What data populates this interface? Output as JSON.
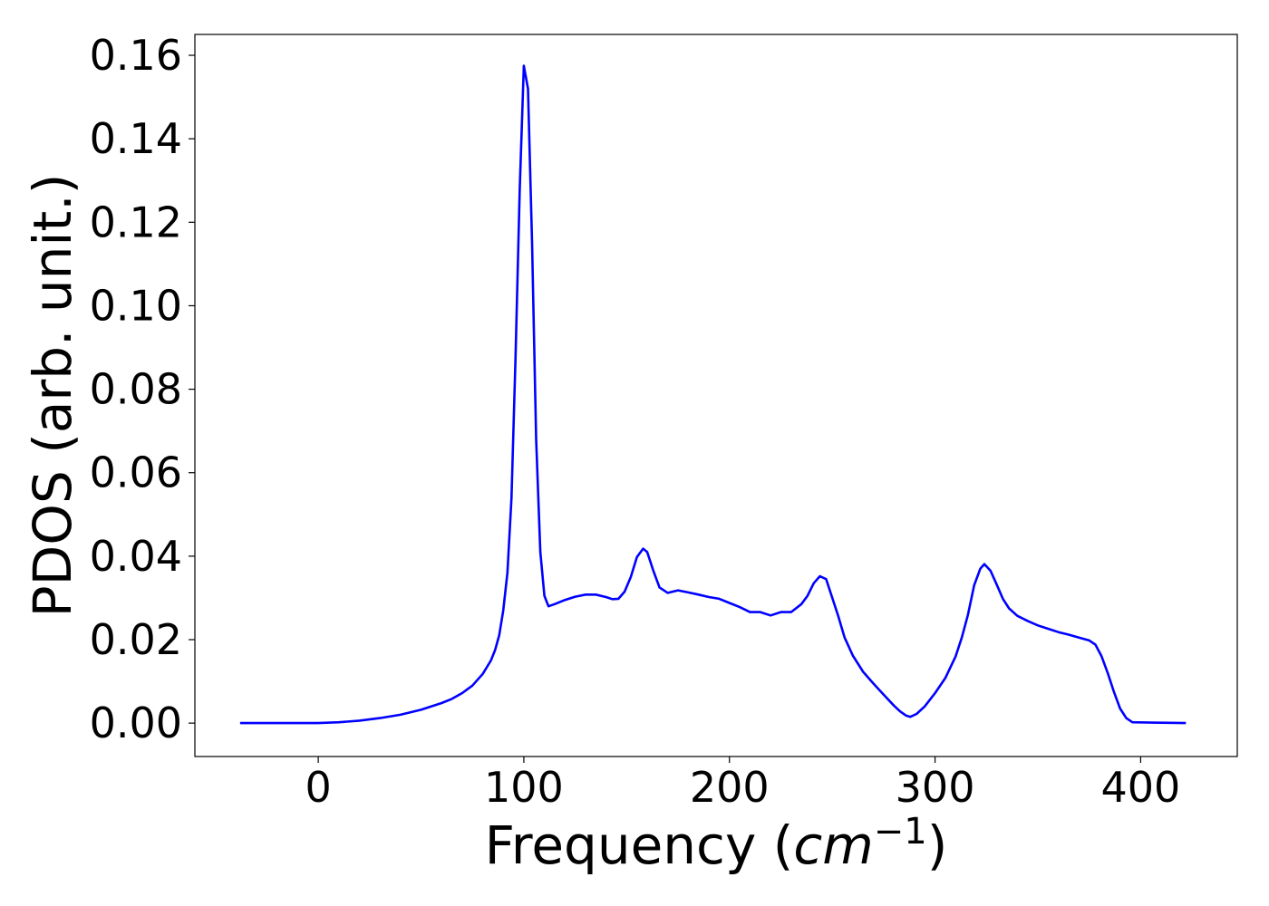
{
  "chart_data": {
    "type": "line",
    "title": "",
    "xlabel": "Frequency (",
    "xlabel_unit": "cm",
    "xlabel_exp": "−1",
    "xlabel_close": ")",
    "ylabel": "PDOS (arb. unit.)",
    "xlim": [
      -60,
      447
    ],
    "ylim": [
      -0.008,
      0.165
    ],
    "xticks": [
      0,
      100,
      200,
      300,
      400
    ],
    "xtick_labels": [
      "0",
      "100",
      "200",
      "300",
      "400"
    ],
    "yticks": [
      0.0,
      0.02,
      0.04,
      0.06,
      0.08,
      0.1,
      0.12,
      0.14,
      0.16
    ],
    "ytick_labels": [
      "0.00",
      "0.02",
      "0.04",
      "0.06",
      "0.08",
      "0.10",
      "0.12",
      "0.14",
      "0.16"
    ],
    "grid": false,
    "series": [
      {
        "color": "#0000ff",
        "x": [
          -38,
          0,
          10,
          20,
          30,
          40,
          50,
          60,
          65,
          70,
          75,
          80,
          84,
          86,
          88,
          90,
          92,
          94,
          96,
          98,
          100,
          102,
          104,
          106,
          108,
          110,
          112,
          115,
          120,
          125,
          130,
          135,
          140,
          143,
          146,
          149,
          152,
          155,
          158,
          160,
          163,
          166,
          170,
          175,
          180,
          185,
          190,
          195,
          200,
          205,
          210,
          215,
          220,
          225,
          230,
          235,
          238,
          241,
          244,
          247,
          250,
          253,
          256,
          260,
          265,
          270,
          275,
          280,
          283,
          286,
          288,
          291,
          295,
          300,
          305,
          310,
          313,
          316,
          319,
          322,
          324,
          327,
          330,
          333,
          336,
          340,
          345,
          350,
          355,
          360,
          365,
          370,
          375,
          378,
          381,
          384,
          387,
          390,
          393,
          396,
          422
        ],
        "values": [
          0.0,
          0.0,
          0.0002,
          0.0006,
          0.0012,
          0.002,
          0.0032,
          0.0048,
          0.0058,
          0.0072,
          0.009,
          0.0118,
          0.015,
          0.0175,
          0.021,
          0.027,
          0.036,
          0.054,
          0.088,
          0.128,
          0.1575,
          0.152,
          0.115,
          0.068,
          0.041,
          0.0305,
          0.028,
          0.0285,
          0.0295,
          0.0303,
          0.0308,
          0.0308,
          0.0302,
          0.0297,
          0.0298,
          0.0315,
          0.035,
          0.0398,
          0.0418,
          0.041,
          0.0365,
          0.0325,
          0.0312,
          0.0318,
          0.0313,
          0.0308,
          0.0302,
          0.0298,
          0.0288,
          0.0278,
          0.0266,
          0.0266,
          0.0258,
          0.0266,
          0.0266,
          0.0285,
          0.0305,
          0.0335,
          0.0352,
          0.0345,
          0.03,
          0.0255,
          0.0205,
          0.0162,
          0.0123,
          0.0095,
          0.0068,
          0.0042,
          0.0028,
          0.0018,
          0.0015,
          0.0022,
          0.004,
          0.0072,
          0.0108,
          0.016,
          0.0205,
          0.026,
          0.033,
          0.037,
          0.0381,
          0.0365,
          0.0332,
          0.0298,
          0.0275,
          0.0257,
          0.0245,
          0.0234,
          0.0226,
          0.0218,
          0.0212,
          0.0205,
          0.0198,
          0.0188,
          0.016,
          0.012,
          0.0075,
          0.0035,
          0.0012,
          0.0002,
          0.0
        ]
      }
    ]
  }
}
